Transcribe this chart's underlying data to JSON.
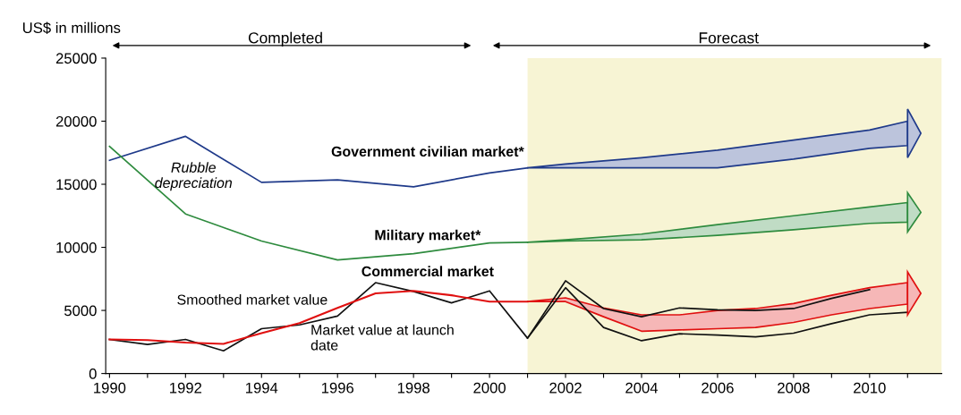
{
  "chart_data": {
    "type": "line",
    "ylabel": "US$ in millions",
    "x": [
      1990,
      1991,
      1992,
      1993,
      1994,
      1995,
      1996,
      1997,
      1998,
      1999,
      2000,
      2001,
      2002,
      2003,
      2004,
      2005,
      2006,
      2007,
      2008,
      2009,
      2010,
      2011
    ],
    "xlim": [
      1989.9,
      2011.9
    ],
    "xticks": [
      {
        "value": 1990,
        "label": "1990"
      },
      {
        "value": 1991,
        "label": null
      },
      {
        "value": 1992,
        "label": "1992"
      },
      {
        "value": 1993,
        "label": null
      },
      {
        "value": 1994,
        "label": "1994"
      },
      {
        "value": 1995,
        "label": null
      },
      {
        "value": 1996,
        "label": "1996"
      },
      {
        "value": 1997,
        "label": null
      },
      {
        "value": 1998,
        "label": "1998"
      },
      {
        "value": 1999,
        "label": null
      },
      {
        "value": 2000,
        "label": "2000"
      },
      {
        "value": 2001,
        "label": null
      },
      {
        "value": 2002,
        "label": "2002"
      },
      {
        "value": 2003,
        "label": null
      },
      {
        "value": 2004,
        "label": "2004"
      },
      {
        "value": 2005,
        "label": null
      },
      {
        "value": 2006,
        "label": "2006"
      },
      {
        "value": 2007,
        "label": null
      },
      {
        "value": 2008,
        "label": "2008"
      },
      {
        "value": 2009,
        "label": null
      },
      {
        "value": 2010,
        "label": "2010"
      },
      {
        "value": 2011,
        "label": null
      }
    ],
    "ylim": [
      0,
      25000
    ],
    "yticks": [
      0,
      5000,
      10000,
      15000,
      20000,
      25000
    ],
    "grid": false,
    "series": [
      {
        "color": "#1f3a8a",
        "x": [
          1990,
          1992,
          1994,
          1996,
          1998,
          2000,
          2001,
          2002,
          2004,
          2006,
          2008,
          2010,
          2011
        ],
        "values": [
          16900,
          18800,
          15150,
          15350,
          14800,
          15900,
          16300,
          null,
          null,
          null,
          null,
          null,
          null
        ],
        "lower": [
          null,
          null,
          null,
          null,
          null,
          null,
          16300,
          16300,
          16300,
          16300,
          17000,
          17850,
          18070
        ],
        "upper": [
          null,
          null,
          null,
          null,
          null,
          null,
          16300,
          16600,
          17100,
          17700,
          18500,
          19300,
          20000
        ]
      },
      {
        "color": "#2e8b3e",
        "x": [
          1990,
          1992,
          1994,
          1996,
          1998,
          2000,
          2001,
          2002,
          2004,
          2006,
          2008,
          2010,
          2011
        ],
        "values": [
          18000,
          12650,
          10500,
          9000,
          9500,
          10350,
          10400,
          null,
          null,
          null,
          null,
          null,
          null
        ],
        "lower": [
          null,
          null,
          null,
          null,
          null,
          null,
          10400,
          10500,
          10600,
          10950,
          11400,
          11900,
          12000
        ],
        "upper": [
          null,
          null,
          null,
          null,
          null,
          null,
          10400,
          10600,
          11050,
          11800,
          12500,
          13200,
          13550
        ]
      },
      {
        "color": "#111111",
        "x": [
          1990,
          1991,
          1992,
          1993,
          1994,
          1995,
          1996,
          1997,
          1998,
          1999,
          2000,
          2001,
          2002,
          2003,
          2004,
          2005,
          2006,
          2007,
          2008,
          2009,
          2010
        ],
        "values": [
          2700,
          2300,
          2700,
          1800,
          3550,
          3850,
          4550,
          7200,
          6500,
          5600,
          6550,
          2800,
          7350,
          5150,
          4500,
          5200,
          5050,
          5000,
          5150,
          5950,
          6650
        ]
      },
      {
        "color": "#111111",
        "x": [
          2001,
          2002,
          2003,
          2004,
          2005,
          2006,
          2007,
          2008,
          2009,
          2010,
          2011
        ],
        "values": [
          2800,
          6800,
          3650,
          2600,
          3150,
          3050,
          2900,
          3200,
          3950,
          4650,
          4850
        ]
      },
      {
        "color": "#e01010",
        "values": [
          2700,
          2650,
          2450,
          2350,
          3200,
          4000,
          5200,
          6350,
          6550,
          6200,
          5700,
          5700,
          null,
          null,
          null,
          null,
          null,
          null,
          null,
          null,
          null,
          null
        ],
        "lower": [
          null,
          null,
          null,
          null,
          null,
          null,
          null,
          null,
          null,
          null,
          null,
          5700,
          5700,
          4500,
          3350,
          3450,
          3550,
          3650,
          4050,
          4650,
          5150,
          5500
        ],
        "upper": [
          null,
          null,
          null,
          null,
          null,
          null,
          null,
          null,
          null,
          null,
          null,
          5700,
          6000,
          5200,
          4650,
          4650,
          5000,
          5150,
          5550,
          6200,
          6800,
          7200
        ]
      }
    ],
    "bands": [
      {
        "axis": "x",
        "from": 2001,
        "to": 2011.9,
        "color": "#f7f4d4"
      }
    ],
    "annotations": [
      "Completed",
      "Forecast",
      "Government civilian market*",
      "Military market*",
      "Commercial market",
      "Smoothed market value",
      "Market value at launch\ndate",
      "Rubble\ndepreciation"
    ]
  }
}
